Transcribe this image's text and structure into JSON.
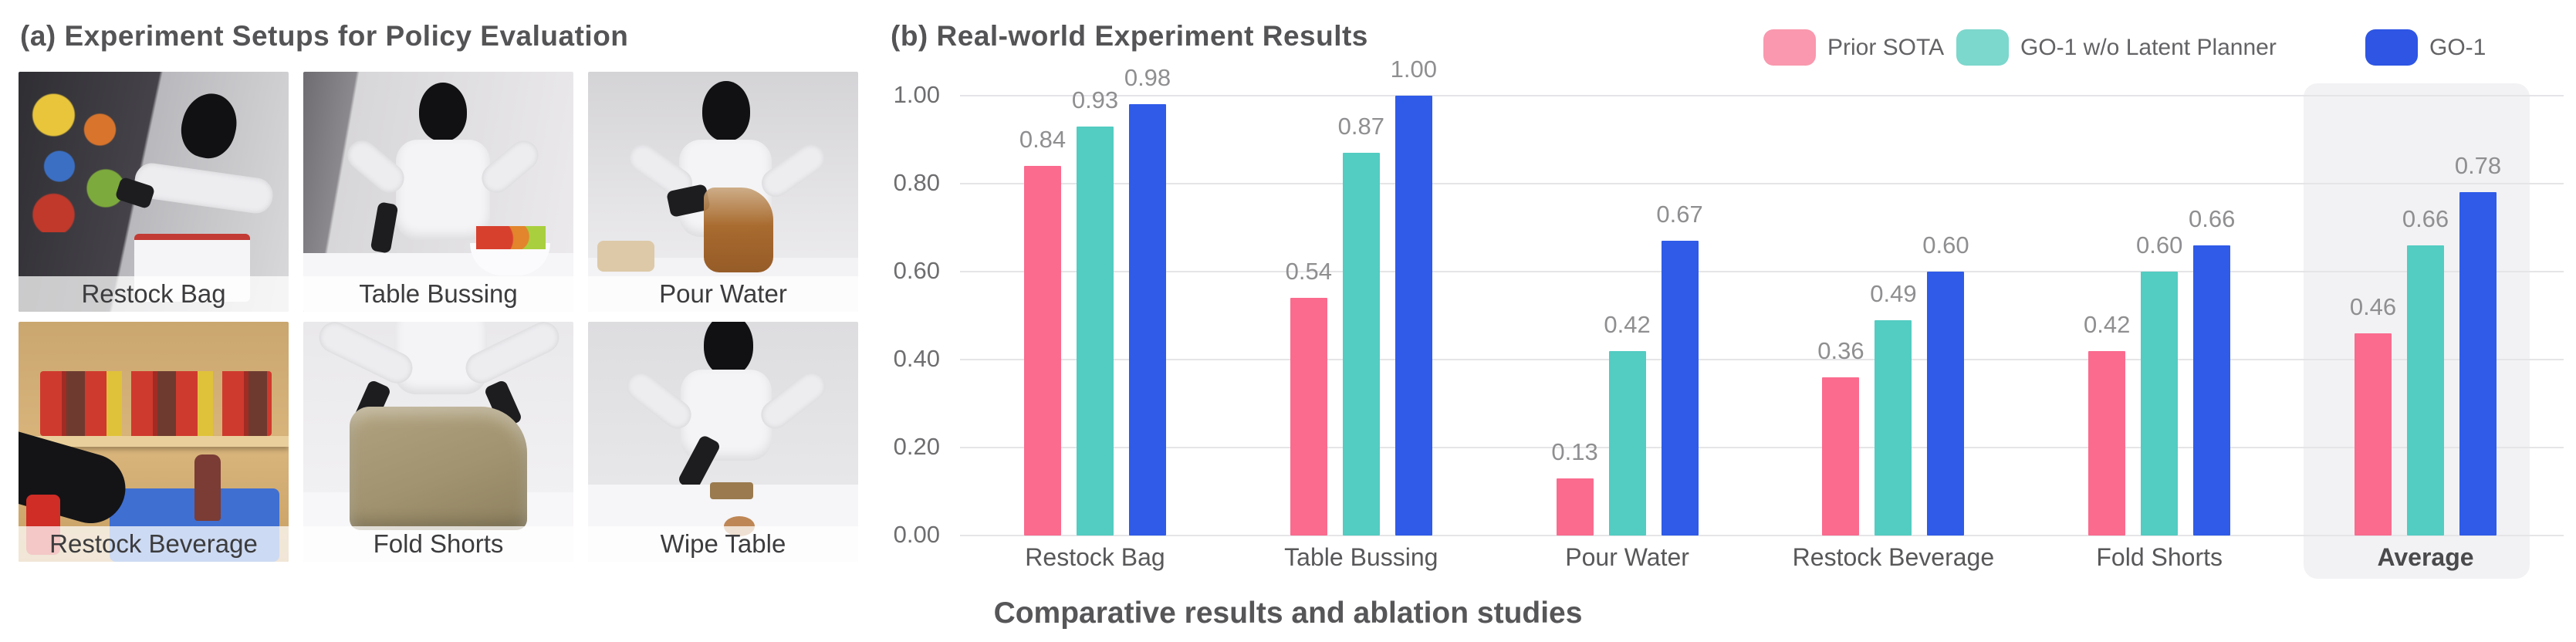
{
  "figure": {
    "panel_a_title": "(a) Experiment Setups for Policy Evaluation",
    "panel_b_title": "(b) Real-world Experiment Results",
    "caption": "Comparative results and ablation studies"
  },
  "setups": [
    {
      "label": "Restock Bag"
    },
    {
      "label": "Table Bussing"
    },
    {
      "label": "Pour Water"
    },
    {
      "label": "Restock Beverage"
    },
    {
      "label": "Fold Shorts"
    },
    {
      "label": "Wipe Table"
    }
  ],
  "chart_data": {
    "type": "bar",
    "title": "(b) Real-world Experiment Results",
    "categories": [
      "Restock Bag",
      "Table Bussing",
      "Pour Water",
      "Restock Beverage",
      "Fold Shorts",
      "Average"
    ],
    "series": [
      {
        "name": "Prior SOTA",
        "color": "#fa6b8e",
        "legend_color": "#f998ae",
        "values": [
          0.84,
          0.54,
          0.13,
          0.36,
          0.42,
          0.46
        ]
      },
      {
        "name": "GO-1 w/o Latent Planner",
        "color": "#53ccc2",
        "legend_color": "#7cd7cc",
        "values": [
          0.93,
          0.87,
          0.42,
          0.49,
          0.6,
          0.66
        ]
      },
      {
        "name": "GO-1",
        "color": "#2f5be8",
        "legend_color": "#2e55e3",
        "values": [
          0.98,
          1.0,
          0.67,
          0.6,
          0.66,
          0.78
        ]
      }
    ],
    "xlabel": "",
    "ylabel": "",
    "ylim": [
      0.0,
      1.0
    ],
    "yticks": [
      0.0,
      0.2,
      0.4,
      0.6,
      0.8,
      1.0
    ],
    "value_label_decimals": 2,
    "grid": true,
    "legend_position": "top-right",
    "highlight_category": "Average",
    "colors": {
      "gridline": "#e5e5e8",
      "highlight_bg": "#f2f2f4",
      "value_label": "#8f8f91",
      "tick_label": "#6e6e70",
      "category_label": "#58585a"
    }
  }
}
